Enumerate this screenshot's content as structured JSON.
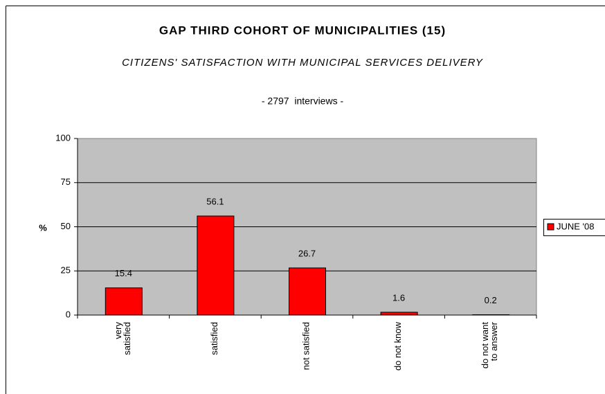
{
  "chart_data": {
    "type": "bar",
    "title": "GAP THIRD COHORT OF MUNICIPALITIES (15)",
    "subtitle": "CITIZENS' SATISFACTION WITH MUNICIPAL SERVICES DELIVERY",
    "annotation": "- 2797  interviews -",
    "ylabel": "%",
    "categories": [
      "very\nsatisfied",
      "satisfied",
      "not satisfied",
      "do not know",
      "do not want\nto answer"
    ],
    "series": [
      {
        "name": "JUNE '08",
        "color": "#ff0000",
        "values": [
          15.4,
          56.1,
          26.7,
          1.6,
          0.2
        ]
      }
    ],
    "ylim": [
      0,
      100
    ],
    "yticks": [
      0,
      25,
      50,
      75,
      100
    ],
    "grid": true,
    "legend": "right"
  }
}
